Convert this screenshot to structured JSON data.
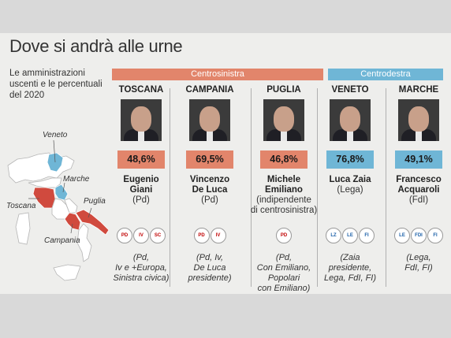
{
  "title": "Dove si andrà alle urne",
  "subtitle": "Le amministrazioni uscenti e le percentuali del 2020",
  "banners": {
    "left": "Centrosinistra",
    "right": "Centrodestra"
  },
  "map_labels": {
    "veneto": "Veneto",
    "marche": "Marche",
    "toscana": "Toscana",
    "puglia": "Puglia",
    "campania": "Campania"
  },
  "colors": {
    "centrosinistra": "#e2856b",
    "centrodestra": "#6fb6d6"
  },
  "regions": [
    {
      "region": "TOSCANA",
      "pct": "48,6%",
      "name_lines": [
        "Eugenio",
        "Giani"
      ],
      "party_lines": [
        "(Pd)"
      ],
      "logos": [
        "PD",
        "IV",
        "SC"
      ],
      "coalition_lines": [
        "(Pd,",
        "Iv e +Europa,",
        "Sinistra civica)"
      ]
    },
    {
      "region": "CAMPANIA",
      "pct": "69,5%",
      "name_lines": [
        "Vincenzo",
        "De Luca"
      ],
      "party_lines": [
        "(Pd)"
      ],
      "logos": [
        "PD",
        "IV"
      ],
      "coalition_lines": [
        "(Pd, Iv,",
        "De Luca",
        "presidente)"
      ]
    },
    {
      "region": "PUGLIA",
      "pct": "46,8%",
      "name_lines": [
        "Michele",
        "Emiliano"
      ],
      "party_lines": [
        "(indipendente",
        "di centrosinistra)"
      ],
      "logos": [
        "PD"
      ],
      "coalition_lines": [
        "(Pd,",
        "Con Emiliano,",
        "Popolari",
        "con Emiliano)"
      ]
    },
    {
      "region": "VENETO",
      "pct": "76,8%",
      "name_lines": [
        "Luca Zaia"
      ],
      "party_lines": [
        "(Lega)"
      ],
      "logos": [
        "LZ",
        "LE",
        "FI"
      ],
      "coalition_lines": [
        "(Zaia",
        "presidente,",
        "Lega, FdI, FI)"
      ]
    },
    {
      "region": "MARCHE",
      "pct": "49,1%",
      "name_lines": [
        "Francesco",
        "Acquaroli"
      ],
      "party_lines": [
        "(FdI)"
      ],
      "logos": [
        "LE",
        "FDI",
        "FI"
      ],
      "coalition_lines": [
        "(Lega,",
        "FdI, FI)"
      ]
    }
  ]
}
